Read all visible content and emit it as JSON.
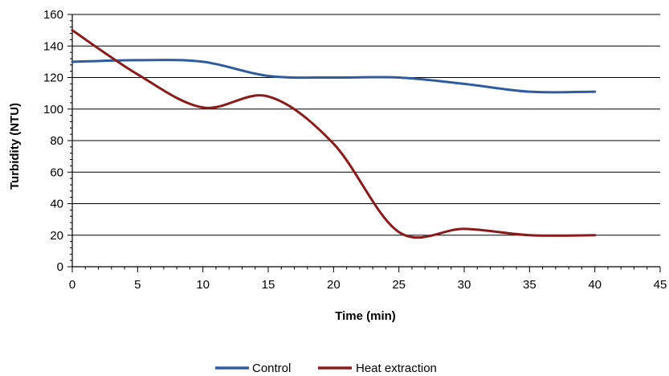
{
  "chart_data": {
    "type": "line",
    "xlabel": "Time (min)",
    "ylabel": "Turbidity  (NTU)",
    "xlim": [
      0,
      45
    ],
    "ylim": [
      0,
      160
    ],
    "x_ticks": [
      0,
      5,
      10,
      15,
      20,
      25,
      30,
      35,
      40,
      45
    ],
    "y_ticks": [
      0,
      20,
      40,
      60,
      80,
      100,
      120,
      140,
      160
    ],
    "grid": "horizontal",
    "legend_position": "bottom",
    "series": [
      {
        "name": "Control",
        "color": "#2e5c9e",
        "points": [
          [
            0,
            130
          ],
          [
            5,
            131
          ],
          [
            10,
            130
          ],
          [
            15,
            121
          ],
          [
            20,
            120
          ],
          [
            25,
            120
          ],
          [
            30,
            116
          ],
          [
            35,
            111
          ],
          [
            40,
            111
          ]
        ]
      },
      {
        "name": "Heat extraction",
        "color": "#8b1a1a",
        "points": [
          [
            0,
            150
          ],
          [
            5,
            122
          ],
          [
            10,
            101
          ],
          [
            15,
            108
          ],
          [
            20,
            78
          ],
          [
            25,
            22
          ],
          [
            30,
            24
          ],
          [
            35,
            20
          ],
          [
            40,
            20
          ]
        ]
      }
    ]
  }
}
